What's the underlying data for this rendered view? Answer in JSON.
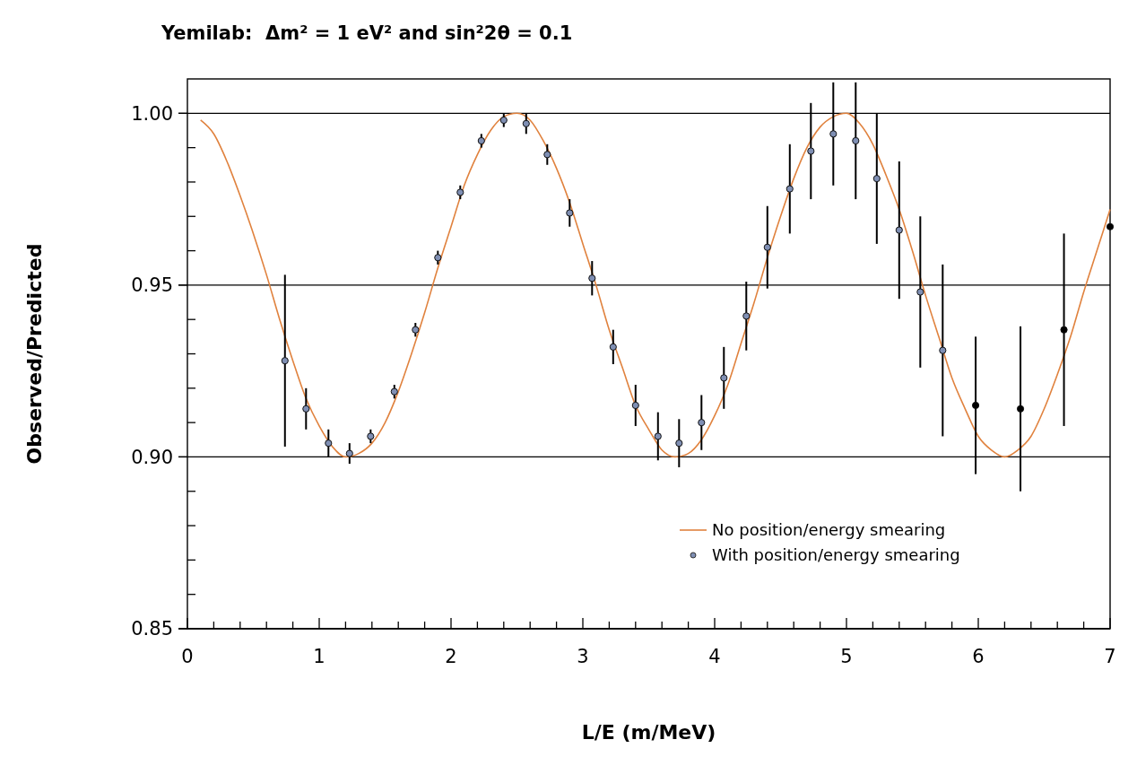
{
  "chart_data": {
    "type": "line",
    "title": "Yemilab:  Δm² = 1 eV² and sin²2θ = 0.1",
    "xlabel": "L/E (m/MeV)",
    "ylabel": "Observed/Predicted",
    "xlim": [
      0,
      7
    ],
    "ylim": [
      0.85,
      1.01
    ],
    "xticks": [
      0,
      {
        "value": 0.2,
        "label": null
      },
      {
        "value": 0.4,
        "label": null
      },
      {
        "value": 0.6,
        "label": null
      },
      {
        "value": 0.8,
        "label": null
      },
      1,
      {
        "value": 1.2,
        "label": null
      },
      {
        "value": 1.4,
        "label": null
      },
      {
        "value": 1.6,
        "label": null
      },
      {
        "value": 1.8,
        "label": null
      },
      2,
      {
        "value": 2.2,
        "label": null
      },
      {
        "value": 2.4,
        "label": null
      },
      {
        "value": 2.6,
        "label": null
      },
      {
        "value": 2.8,
        "label": null
      },
      3,
      {
        "value": 3.2,
        "label": null
      },
      {
        "value": 3.4,
        "label": null
      },
      {
        "value": 3.6,
        "label": null
      },
      {
        "value": 3.8,
        "label": null
      },
      4,
      {
        "value": 4.2,
        "label": null
      },
      {
        "value": 4.4,
        "label": null
      },
      {
        "value": 4.6,
        "label": null
      },
      {
        "value": 4.8,
        "label": null
      },
      5,
      {
        "value": 5.2,
        "label": null
      },
      {
        "value": 5.4,
        "label": null
      },
      {
        "value": 5.6,
        "label": null
      },
      {
        "value": 5.8,
        "label": null
      },
      6,
      {
        "value": 6.2,
        "label": null
      },
      {
        "value": 6.4,
        "label": null
      },
      {
        "value": 6.6,
        "label": null
      },
      {
        "value": 6.8,
        "label": null
      },
      7
    ],
    "yticks": [
      {
        "value": 0.85,
        "label": "0.85"
      },
      {
        "value": 0.86,
        "label": null
      },
      {
        "value": 0.87,
        "label": null
      },
      {
        "value": 0.88,
        "label": null
      },
      {
        "value": 0.89,
        "label": null
      },
      {
        "value": 0.9,
        "label": "0.90"
      },
      {
        "value": 0.91,
        "label": null
      },
      {
        "value": 0.92,
        "label": null
      },
      {
        "value": 0.93,
        "label": null
      },
      {
        "value": 0.94,
        "label": null
      },
      {
        "value": 0.95,
        "label": "0.95"
      },
      {
        "value": 0.96,
        "label": null
      },
      {
        "value": 0.97,
        "label": null
      },
      {
        "value": 0.98,
        "label": null
      },
      {
        "value": 0.99,
        "label": null
      },
      {
        "value": 1.0,
        "label": "1.00"
      }
    ],
    "grid": "y",
    "legend": "bottom right",
    "series": [
      {
        "name": "No position/energy smearing",
        "color": "#e0823e",
        "line_style": "solid",
        "x": [
          0.1,
          0.2,
          0.3,
          0.4,
          0.5,
          0.6,
          0.7,
          0.8,
          0.9,
          1.0,
          1.1,
          1.2,
          1.3,
          1.4,
          1.5,
          1.6,
          1.7,
          1.8,
          1.9,
          2.0,
          2.1,
          2.2,
          2.3,
          2.4,
          2.5,
          2.6,
          2.7,
          2.8,
          2.9,
          3.0,
          3.1,
          3.2,
          3.3,
          3.4,
          3.5,
          3.6,
          3.7,
          3.8,
          3.9,
          4.0,
          4.1,
          4.2,
          4.3,
          4.4,
          4.5,
          4.6,
          4.7,
          4.8,
          4.9,
          5.0,
          5.1,
          5.2,
          5.3,
          5.4,
          5.5,
          5.6,
          5.7,
          5.8,
          5.9,
          6.0,
          6.1,
          6.2,
          6.3,
          6.4,
          6.5,
          6.6,
          6.7,
          6.8,
          6.9,
          7.0
        ],
        "values": [
          0.998,
          0.994,
          0.986,
          0.976,
          0.965,
          0.953,
          0.94,
          0.928,
          0.917,
          0.909,
          0.903,
          0.9,
          0.901,
          0.904,
          0.91,
          0.919,
          0.93,
          0.942,
          0.955,
          0.967,
          0.979,
          0.988,
          0.995,
          0.999,
          1.0,
          0.998,
          0.992,
          0.984,
          0.974,
          0.962,
          0.95,
          0.937,
          0.926,
          0.915,
          0.908,
          0.902,
          0.9,
          0.901,
          0.905,
          0.912,
          0.921,
          0.933,
          0.945,
          0.958,
          0.97,
          0.981,
          0.99,
          0.996,
          0.999,
          1.0,
          0.997,
          0.991,
          0.982,
          0.972,
          0.96,
          0.947,
          0.935,
          0.923,
          0.914,
          0.906,
          0.902,
          0.9,
          0.902,
          0.906,
          0.914,
          0.924,
          0.935,
          0.948,
          0.96,
          0.972
        ]
      },
      {
        "type": "scatter",
        "name": "With position/energy smearing",
        "color": "#7f8fb4",
        "marker": "circle",
        "colors": [
          "#7f8fb4",
          "#7f8fb4",
          "#7f8fb4",
          "#7f8fb4",
          "#7f8fb4",
          "#7f8fb4",
          "#7f8fb4",
          "#7f8fb4",
          "#7f8fb4",
          "#7f8fb4",
          "#7f8fb4",
          "#7f8fb4",
          "#7f8fb4",
          "#7f8fb4",
          "#7f8fb4",
          "#7f8fb4",
          "#7f8fb4",
          "#7f8fb4",
          "#7f8fb4",
          "#7f8fb4",
          "#7f8fb4",
          "#7f8fb4",
          "#7f8fb4",
          "#7f8fb4",
          "#7f8fb4",
          "#7f8fb4",
          "#7f8fb4",
          "#7f8fb4",
          "#7f8fb4",
          "#7f8fb4",
          "#7f8fb4",
          "#000000",
          "#000000",
          "#000000",
          "#000000"
        ],
        "x": [
          0.74,
          0.9,
          1.07,
          1.23,
          1.39,
          1.57,
          1.73,
          1.9,
          2.07,
          2.23,
          2.4,
          2.57,
          2.73,
          2.9,
          3.07,
          3.23,
          3.4,
          3.57,
          3.73,
          3.9,
          4.07,
          4.24,
          4.4,
          4.57,
          4.73,
          4.9,
          5.07,
          5.23,
          5.4,
          5.56,
          5.73,
          5.98,
          6.32,
          6.65,
          7.0
        ],
        "values": [
          0.928,
          0.914,
          0.904,
          0.901,
          0.906,
          0.919,
          0.937,
          0.958,
          0.977,
          0.992,
          0.998,
          0.997,
          0.988,
          0.971,
          0.952,
          0.932,
          0.915,
          0.906,
          0.904,
          0.91,
          0.923,
          0.941,
          0.961,
          0.978,
          0.989,
          0.994,
          0.992,
          0.981,
          0.966,
          0.948,
          0.931,
          0.915,
          0.914,
          0.937,
          0.967
        ],
        "errors": [
          0.025,
          0.006,
          0.004,
          0.003,
          0.002,
          0.002,
          0.002,
          0.002,
          0.002,
          0.002,
          0.002,
          0.003,
          0.003,
          0.004,
          0.005,
          0.005,
          0.006,
          0.007,
          0.007,
          0.008,
          0.009,
          0.01,
          0.012,
          0.013,
          0.014,
          0.015,
          0.017,
          0.019,
          0.02,
          0.022,
          0.025,
          0.02,
          0.024,
          0.028,
          null
        ]
      }
    ]
  }
}
